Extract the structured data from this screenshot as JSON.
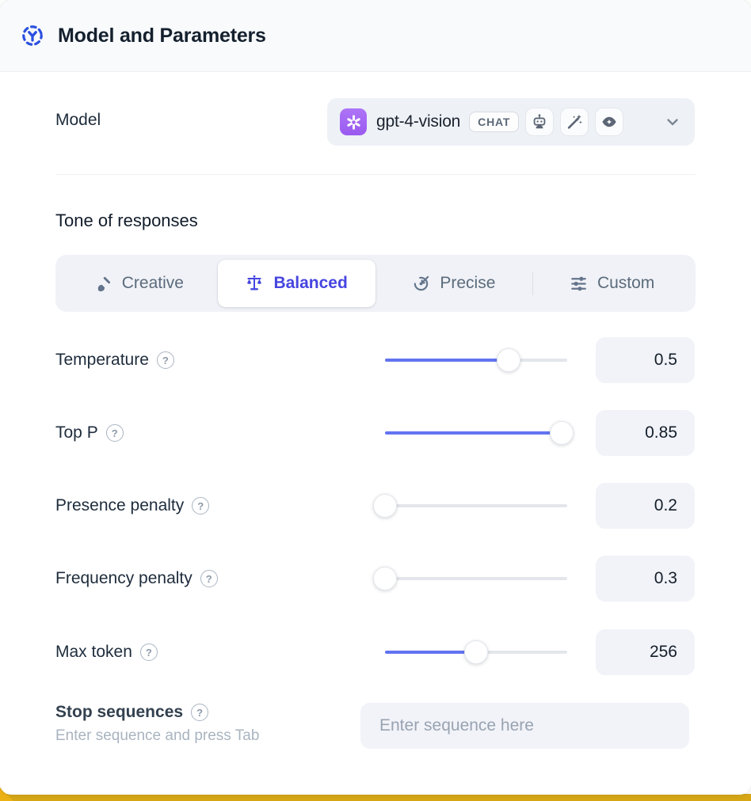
{
  "header": {
    "title": "Model and Parameters"
  },
  "model_row": {
    "label": "Model",
    "selected_model": "gpt-4-vision",
    "type_badge": "CHAT",
    "capability_icons": [
      "robot-icon",
      "magic-wand-icon",
      "vision-icon"
    ]
  },
  "tone": {
    "heading": "Tone of responses",
    "options": [
      {
        "label": "Creative",
        "icon": "brush-icon",
        "selected": false
      },
      {
        "label": "Balanced",
        "icon": "scale-icon",
        "selected": true
      },
      {
        "label": "Precise",
        "icon": "target-icon",
        "selected": false
      },
      {
        "label": "Custom",
        "icon": "sliders-icon",
        "selected": false
      }
    ]
  },
  "parameters": [
    {
      "label": "Temperature",
      "value": "0.5",
      "fill_pct": 68
    },
    {
      "label": "Top P",
      "value": "0.85",
      "fill_pct": 97
    },
    {
      "label": "Presence penalty",
      "value": "0.2",
      "fill_pct": 0
    },
    {
      "label": "Frequency penalty",
      "value": "0.3",
      "fill_pct": 0
    },
    {
      "label": "Max token",
      "value": "256",
      "fill_pct": 50
    }
  ],
  "stop_sequences": {
    "label": "Stop sequences",
    "hint": "Enter sequence and press Tab",
    "placeholder": "Enter sequence here"
  },
  "icons": {
    "help_glyph": "?"
  },
  "colors": {
    "accent_indigo": "#4645e0",
    "slider_blue": "#6274f1",
    "brand_purple": "#a362f3",
    "header_bg": "#f8fafc",
    "control_bg": "#f0f2f7",
    "gold_strip": "#d7a716"
  }
}
